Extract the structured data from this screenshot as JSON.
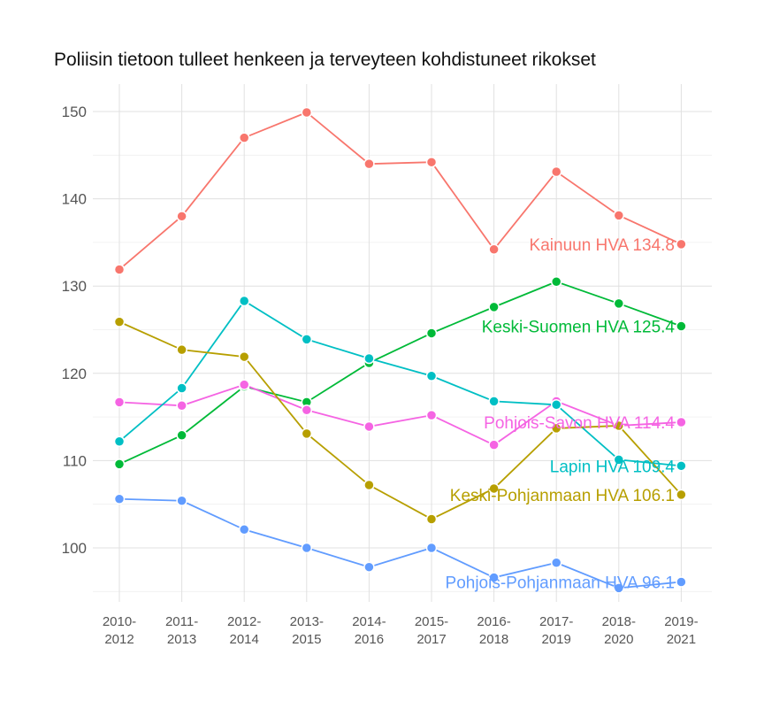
{
  "chart_data": {
    "type": "line",
    "title": "Poliisin tietoon tulleet henkeen ja terveyteen kohdistuneet rikokset",
    "xlabel": "",
    "ylabel": "",
    "categories": [
      "2010-2012",
      "2011-2013",
      "2012-2014",
      "2013-2015",
      "2014-2016",
      "2015-2017",
      "2016-2018",
      "2017-2019",
      "2018-2020",
      "2019-2021"
    ],
    "ylim": [
      94,
      152
    ],
    "yticks": [
      100,
      110,
      120,
      130,
      140,
      150
    ],
    "grid": true,
    "series": [
      {
        "name": "Kainuun HVA",
        "label": "Kainuun HVA 134.8",
        "color": "#F8766D",
        "values": [
          131.9,
          138.0,
          147.0,
          149.9,
          144.0,
          144.2,
          134.2,
          143.1,
          138.1,
          134.8
        ]
      },
      {
        "name": "Keski-Suomen HVA",
        "label": "Keski-Suomen HVA 125.4",
        "color": "#00BA38",
        "values": [
          109.6,
          112.9,
          118.5,
          116.7,
          121.2,
          124.6,
          127.6,
          130.5,
          128.0,
          125.4
        ]
      },
      {
        "name": "Pohjois-Savon HVA",
        "label": "Pohjois-Savon HVA 114.4",
        "color": "#F564E3",
        "values": [
          116.7,
          116.3,
          118.7,
          115.8,
          113.9,
          115.2,
          111.8,
          116.8,
          114.0,
          114.4
        ]
      },
      {
        "name": "Lapin HVA",
        "label": "Lapin HVA 109.4",
        "color": "#00BFC4",
        "values": [
          112.2,
          118.3,
          128.3,
          123.9,
          121.7,
          119.7,
          116.8,
          116.4,
          110.1,
          109.4
        ]
      },
      {
        "name": "Keski-Pohjanmaan HVA",
        "label": "Keski-Pohjanmaan HVA 106.1",
        "color": "#B79F00",
        "values": [
          125.9,
          122.7,
          121.9,
          113.1,
          107.2,
          103.3,
          106.8,
          113.7,
          114.0,
          106.1
        ]
      },
      {
        "name": "Pohjois-Pohjanmaan HVA",
        "label": "Pohjois-Pohjanmaan HVA 96.1",
        "color": "#619CFF",
        "values": [
          105.6,
          105.4,
          102.1,
          100.0,
          97.8,
          100.0,
          96.6,
          98.3,
          95.4,
          96.1
        ]
      }
    ]
  }
}
